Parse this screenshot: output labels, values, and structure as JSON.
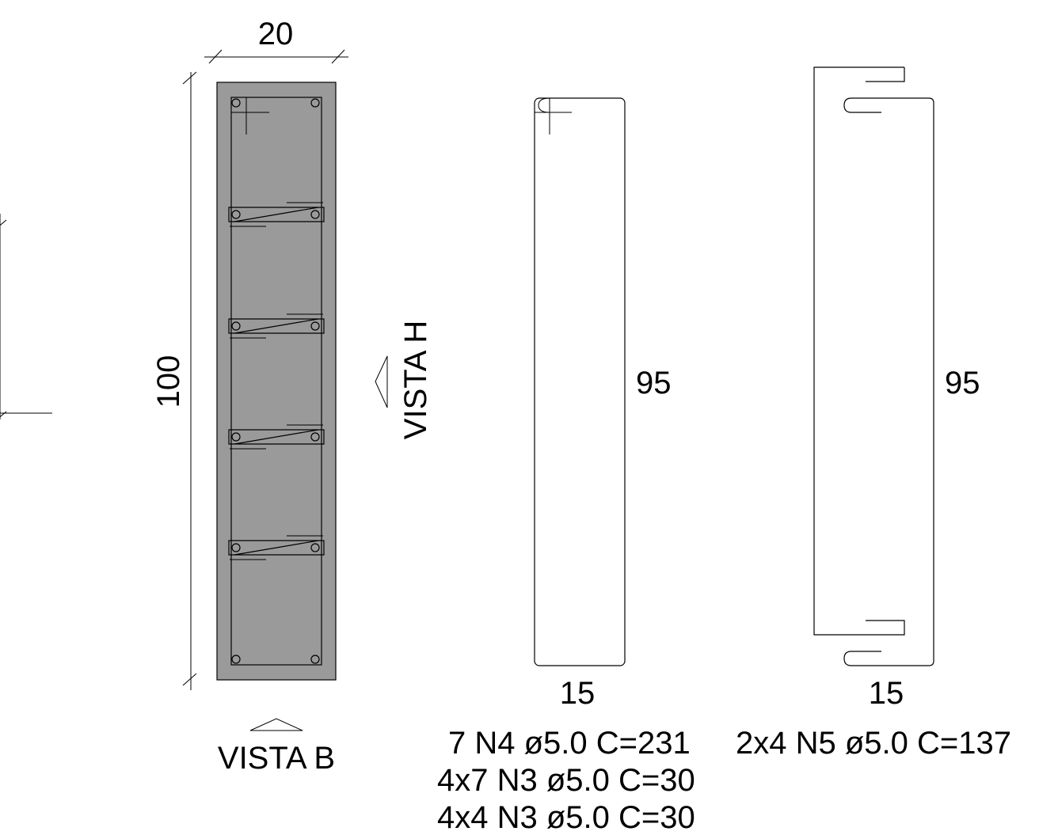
{
  "section": {
    "width_label": "20",
    "height_label": "100",
    "view_bottom_label": "VISTA B",
    "view_side_label": "VISTA H",
    "concrete_color": "#9a9a9a"
  },
  "stirrup_n4": {
    "height_label": "95",
    "width_label": "15",
    "spec_label": "7 N4 ø5.0 C=231"
  },
  "stirrup_n5": {
    "height_label": "95",
    "width_label": "15",
    "spec_label": "2x4 N5 ø5.0 C=137"
  },
  "ties": {
    "spec_label_1": "4x7 N3 ø5.0 C=30",
    "spec_label_2": "4x4 N3 ø5.0 C=30"
  }
}
